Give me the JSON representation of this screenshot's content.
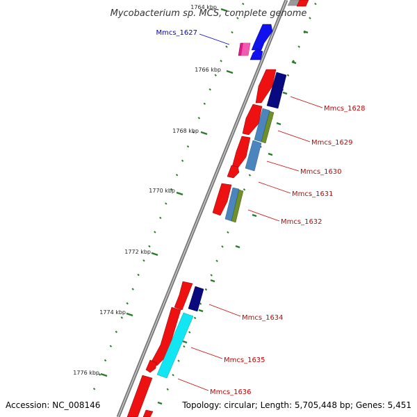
{
  "title": "Mycobacterium sp. MCS, complete genome",
  "footer": {
    "accession": "Accession: NC_008146",
    "stats": "Topology: circular; Length: 5,705,448 bp; Genes: 5,451"
  },
  "ruler": {
    "labels": [
      "1764 kbp",
      "1766 kbp",
      "1768 kbp",
      "1770 kbp",
      "1772 kbp",
      "1774 kbp",
      "1776 kbp"
    ],
    "tick_color": "#2a7a2a"
  },
  "genes": [
    {
      "label": "Mmcs_1627",
      "color": "#0000cc"
    },
    {
      "label": "Mmcs_1628",
      "color": "#cc0000"
    },
    {
      "label": "Mmcs_1629",
      "color": "#cc0000"
    },
    {
      "label": "Mmcs_1630",
      "color": "#cc0000"
    },
    {
      "label": "Mmcs_1631",
      "color": "#cc0000"
    },
    {
      "label": "Mmcs_1632",
      "color": "#cc0000"
    },
    {
      "label": "Mmcs_1634",
      "color": "#cc0000"
    },
    {
      "label": "Mmcs_1635",
      "color": "#cc0000"
    },
    {
      "label": "Mmcs_1636",
      "color": "#cc0000"
    }
  ],
  "feature_colors": {
    "cds_forward": "#ee1111",
    "cds_reverse": "#0a0a80",
    "steelblue": "#4a86bd",
    "olive": "#6f8f2a",
    "cyan": "#11e6f2",
    "blue": "#1111ee",
    "magenta": "#e0188a",
    "backbone": "#8a8a8a"
  }
}
